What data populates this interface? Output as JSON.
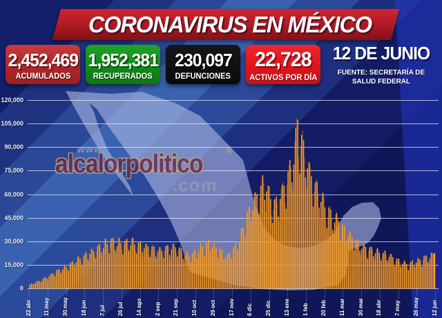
{
  "title": "CORONAVIRUS EN MÉXICO",
  "stats": [
    {
      "value": "2,452,469",
      "label": "ACUMULADOS",
      "color": "#b0262a"
    },
    {
      "value": "1,952,381",
      "label": "RECUPERADOS",
      "color": "#128a18"
    },
    {
      "value": "230,097",
      "label": "DEFUNCIONES",
      "color": "#0a0a0c"
    },
    {
      "value": "22,728",
      "label": "ACTIVOS POR DÍA",
      "color": "#e0151b"
    }
  ],
  "date": {
    "day": "12 DE JUNIO",
    "source": "FUENTE: SECRETARÍA DE SALUD FEDERAL"
  },
  "watermark": {
    "www": "www.",
    "name": "alcalorpolitico",
    "reg": "®",
    "tld": ".com"
  },
  "chart_data": {
    "type": "bar",
    "title": "",
    "xlabel": "",
    "ylabel": "",
    "ylim": [
      0,
      120000
    ],
    "grid": true,
    "legend": "none",
    "bar_color": "#ffa428",
    "bar_alt_color": "rgba(200,110,10,0.55)",
    "y_tick_labels": [
      "0",
      "15,000",
      "30,000",
      "45,000",
      "60,000",
      "75,000",
      "90,000",
      "105,000",
      "120,000"
    ],
    "x_tick_labels": [
      "22 abr",
      "11 may",
      "30 may",
      "18 jun",
      "7 jul",
      "26 jul",
      "14 ago",
      "2 sep",
      "21 sep",
      "10 oct",
      "29 oct",
      "17 nov",
      "6 dic",
      "25 dic",
      "13 ene",
      "1 feb",
      "20 feb",
      "11 mar",
      "30 mar",
      "18 abr",
      "7 may",
      "26 may",
      "12 jun"
    ],
    "x_tick_interval_days": 19,
    "series": [
      {
        "name": "activos por día",
        "note": "daily bars; envelope anchor points read from chart as [day offset from first tick '22 abr', value]",
        "envelope_anchors": [
          [
            0,
            2500
          ],
          [
            10,
            5200
          ],
          [
            19,
            8000
          ],
          [
            28,
            11500
          ],
          [
            38,
            14500
          ],
          [
            48,
            18500
          ],
          [
            57,
            22000
          ],
          [
            66,
            25500
          ],
          [
            76,
            29000
          ],
          [
            83,
            31500
          ],
          [
            90,
            30500
          ],
          [
            95,
            30000
          ],
          [
            105,
            31200
          ],
          [
            114,
            28500
          ],
          [
            124,
            27000
          ],
          [
            133,
            25500
          ],
          [
            140,
            27200
          ],
          [
            152,
            28000
          ],
          [
            158,
            23500
          ],
          [
            165,
            22500
          ],
          [
            171,
            23500
          ],
          [
            178,
            28500
          ],
          [
            184,
            30000
          ],
          [
            190,
            28500
          ],
          [
            196,
            25000
          ],
          [
            203,
            21000
          ],
          [
            209,
            26000
          ],
          [
            214,
            31000
          ],
          [
            218,
            36000
          ],
          [
            224,
            48000
          ],
          [
            229,
            55000
          ],
          [
            234,
            62000
          ],
          [
            239,
            67500
          ],
          [
            242,
            69500
          ],
          [
            246,
            64000
          ],
          [
            250,
            58000
          ],
          [
            253,
            56000
          ],
          [
            257,
            60000
          ],
          [
            262,
            68000
          ],
          [
            266,
            74000
          ],
          [
            269,
            82000
          ],
          [
            272,
            90000
          ],
          [
            274,
            100000
          ],
          [
            276,
            111000
          ],
          [
            278,
            103000
          ],
          [
            281,
            94000
          ],
          [
            284,
            88000
          ],
          [
            288,
            78000
          ],
          [
            292,
            71000
          ],
          [
            296,
            66000
          ],
          [
            300,
            61000
          ],
          [
            305,
            53000
          ],
          [
            310,
            48500
          ],
          [
            314,
            46000
          ],
          [
            319,
            44000
          ],
          [
            323,
            40000
          ],
          [
            328,
            36500
          ],
          [
            333,
            33500
          ],
          [
            338,
            30500
          ],
          [
            343,
            28000
          ],
          [
            348,
            26500
          ],
          [
            353,
            25500
          ],
          [
            357,
            25000
          ],
          [
            362,
            24000
          ],
          [
            367,
            22500
          ],
          [
            371,
            21500
          ],
          [
            376,
            19500
          ],
          [
            381,
            18000
          ],
          [
            386,
            16800
          ],
          [
            390,
            16200
          ],
          [
            395,
            17200
          ],
          [
            400,
            18500
          ],
          [
            405,
            19800
          ],
          [
            410,
            21200
          ],
          [
            414,
            22300
          ],
          [
            417,
            22728
          ]
        ]
      }
    ]
  }
}
